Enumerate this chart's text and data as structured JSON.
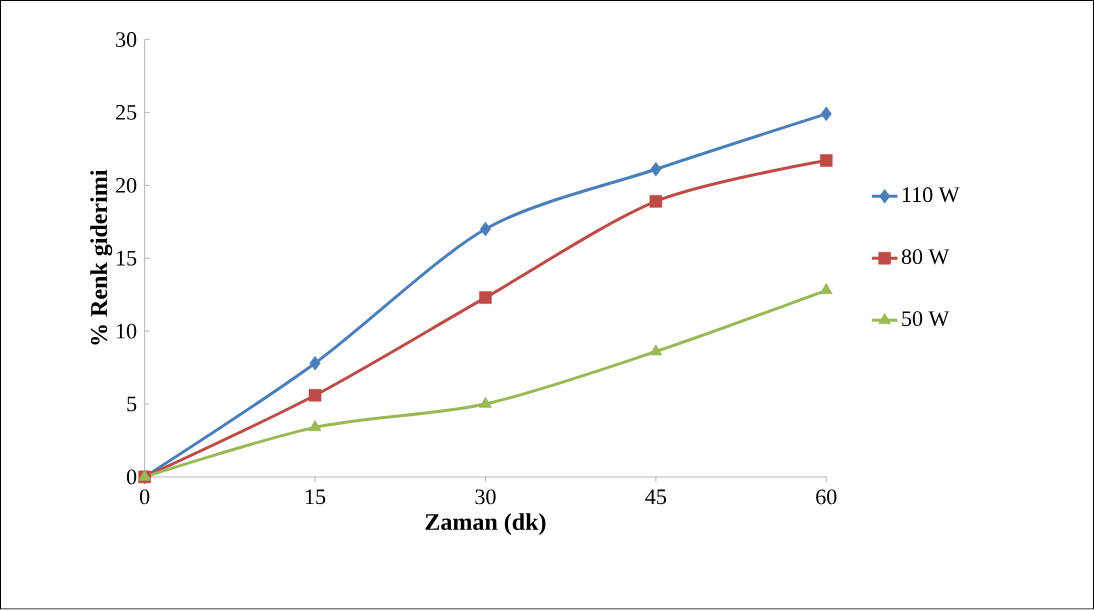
{
  "chart_data": {
    "type": "line",
    "xlabel": "Zaman (dk)",
    "ylabel": "% Renk giderimi",
    "x": [
      0,
      15,
      30,
      45,
      60
    ],
    "xlim": [
      0,
      60
    ],
    "xticks": [
      0,
      15,
      30,
      45,
      60
    ],
    "ylim": [
      0,
      30
    ],
    "yticks": [
      0,
      5,
      10,
      15,
      20,
      25,
      30
    ],
    "grid": false,
    "legend": "right",
    "line_style": "solid",
    "series": [
      {
        "name": "110 W",
        "color": "#4a7ebb",
        "marker": "diamond",
        "values": [
          0,
          7.8,
          17.0,
          21.1,
          24.9
        ]
      },
      {
        "name": "80 W",
        "color": "#be4b48",
        "marker": "square",
        "values": [
          0,
          5.6,
          12.3,
          18.9,
          21.7
        ]
      },
      {
        "name": "50 W",
        "color": "#98b954",
        "marker": "triangle",
        "values": [
          0,
          3.4,
          5.0,
          8.6,
          12.8
        ]
      }
    ]
  }
}
